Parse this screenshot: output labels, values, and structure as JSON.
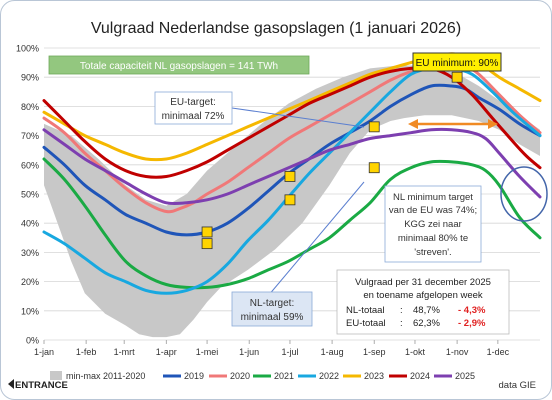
{
  "chart_data": {
    "type": "line",
    "title": "Vulgraad Nederlandse gasopslagen (1 januari 2026)",
    "ylim": [
      0,
      100
    ],
    "xlim": [
      0,
      365
    ],
    "yticks": [
      {
        "v": 0,
        "label": "0%"
      },
      {
        "v": 10,
        "label": "10%"
      },
      {
        "v": 20,
        "label": "20%"
      },
      {
        "v": 30,
        "label": "30%"
      },
      {
        "v": 40,
        "label": "40%"
      },
      {
        "v": 50,
        "label": "50%"
      },
      {
        "v": 60,
        "label": "60%"
      },
      {
        "v": 70,
        "label": "70%"
      },
      {
        "v": 80,
        "label": "80%"
      },
      {
        "v": 90,
        "label": "90%"
      },
      {
        "v": 100,
        "label": "100%"
      }
    ],
    "xticks": [
      {
        "v": 0,
        "label": "1-jan"
      },
      {
        "v": 31,
        "label": "1-feb"
      },
      {
        "v": 59,
        "label": "1-mrt"
      },
      {
        "v": 90,
        "label": "1-apr"
      },
      {
        "v": 120,
        "label": "1-mei"
      },
      {
        "v": 151,
        "label": "1-jun"
      },
      {
        "v": 181,
        "label": "1-jul"
      },
      {
        "v": 212,
        "label": "1-aug"
      },
      {
        "v": 243,
        "label": "1-sep"
      },
      {
        "v": 273,
        "label": "1-okt"
      },
      {
        "v": 304,
        "label": "1-nov"
      },
      {
        "v": 334,
        "label": "1-dec"
      }
    ],
    "band": {
      "name": "min-max 2011-2020",
      "color": "#c8c8c8",
      "upper": [
        [
          0,
          74
        ],
        [
          20,
          70
        ],
        [
          40,
          62
        ],
        [
          60,
          53
        ],
        [
          75,
          48
        ],
        [
          90,
          46
        ],
        [
          105,
          50
        ],
        [
          120,
          58
        ],
        [
          140,
          66
        ],
        [
          160,
          74
        ],
        [
          180,
          81
        ],
        [
          200,
          86
        ],
        [
          220,
          90
        ],
        [
          240,
          93
        ],
        [
          260,
          94
        ],
        [
          275,
          94
        ],
        [
          290,
          93
        ],
        [
          305,
          91
        ],
        [
          320,
          87
        ],
        [
          335,
          82
        ],
        [
          350,
          77
        ],
        [
          365,
          72
        ]
      ],
      "lower": [
        [
          0,
          53
        ],
        [
          10,
          40
        ],
        [
          20,
          27
        ],
        [
          30,
          16
        ],
        [
          45,
          9
        ],
        [
          60,
          5
        ],
        [
          70,
          2
        ],
        [
          80,
          1
        ],
        [
          90,
          1
        ],
        [
          100,
          2
        ],
        [
          110,
          7
        ],
        [
          120,
          13
        ],
        [
          130,
          18
        ],
        [
          150,
          24
        ],
        [
          170,
          31
        ],
        [
          190,
          40
        ],
        [
          210,
          53
        ],
        [
          225,
          64
        ],
        [
          240,
          72
        ],
        [
          255,
          75
        ],
        [
          265,
          76
        ],
        [
          280,
          77
        ],
        [
          300,
          77
        ],
        [
          320,
          75
        ],
        [
          335,
          72
        ],
        [
          350,
          67
        ],
        [
          365,
          63
        ]
      ]
    },
    "series": [
      {
        "name": "2019",
        "color": "#1f55b8",
        "points": [
          [
            0,
            66
          ],
          [
            15,
            60
          ],
          [
            30,
            53
          ],
          [
            45,
            48
          ],
          [
            60,
            43
          ],
          [
            75,
            40
          ],
          [
            90,
            37
          ],
          [
            105,
            36
          ],
          [
            120,
            37
          ],
          [
            135,
            40
          ],
          [
            150,
            45
          ],
          [
            165,
            51
          ],
          [
            180,
            57
          ],
          [
            195,
            62
          ],
          [
            210,
            67
          ],
          [
            225,
            71
          ],
          [
            240,
            75
          ],
          [
            255,
            80
          ],
          [
            270,
            84
          ],
          [
            285,
            87
          ],
          [
            300,
            87
          ],
          [
            310,
            86
          ],
          [
            320,
            83
          ],
          [
            335,
            79
          ],
          [
            350,
            74
          ],
          [
            365,
            70
          ]
        ]
      },
      {
        "name": "2020",
        "color": "#f07878",
        "points": [
          [
            0,
            76
          ],
          [
            15,
            71
          ],
          [
            30,
            64
          ],
          [
            45,
            58
          ],
          [
            60,
            52
          ],
          [
            75,
            47
          ],
          [
            90,
            44
          ],
          [
            100,
            45
          ],
          [
            110,
            47
          ],
          [
            120,
            50
          ],
          [
            135,
            54
          ],
          [
            150,
            59
          ],
          [
            165,
            64
          ],
          [
            180,
            69
          ],
          [
            195,
            73
          ],
          [
            210,
            77
          ],
          [
            225,
            81
          ],
          [
            240,
            85
          ],
          [
            255,
            89
          ],
          [
            270,
            92
          ],
          [
            285,
            94
          ],
          [
            300,
            95
          ],
          [
            310,
            94
          ],
          [
            320,
            91
          ],
          [
            335,
            84
          ],
          [
            350,
            77
          ],
          [
            365,
            71
          ]
        ]
      },
      {
        "name": "2021",
        "color": "#1aaa44",
        "points": [
          [
            0,
            62
          ],
          [
            15,
            55
          ],
          [
            30,
            46
          ],
          [
            45,
            36
          ],
          [
            60,
            27
          ],
          [
            75,
            22
          ],
          [
            90,
            19
          ],
          [
            105,
            18
          ],
          [
            120,
            18
          ],
          [
            135,
            19
          ],
          [
            150,
            21
          ],
          [
            165,
            24
          ],
          [
            180,
            27
          ],
          [
            195,
            31
          ],
          [
            210,
            35
          ],
          [
            225,
            41
          ],
          [
            240,
            47
          ],
          [
            255,
            55
          ],
          [
            270,
            59
          ],
          [
            285,
            61
          ],
          [
            300,
            61
          ],
          [
            315,
            60
          ],
          [
            325,
            58
          ],
          [
            335,
            53
          ],
          [
            350,
            42
          ],
          [
            365,
            35
          ]
        ]
      },
      {
        "name": "2022",
        "color": "#18a8e0",
        "points": [
          [
            0,
            37
          ],
          [
            15,
            33
          ],
          [
            30,
            28
          ],
          [
            45,
            23
          ],
          [
            60,
            20
          ],
          [
            75,
            17
          ],
          [
            90,
            16
          ],
          [
            105,
            17
          ],
          [
            120,
            20
          ],
          [
            135,
            26
          ],
          [
            150,
            34
          ],
          [
            165,
            41
          ],
          [
            180,
            49
          ],
          [
            195,
            57
          ],
          [
            210,
            64
          ],
          [
            225,
            71
          ],
          [
            240,
            78
          ],
          [
            255,
            85
          ],
          [
            270,
            91
          ],
          [
            285,
            93
          ],
          [
            300,
            93
          ],
          [
            315,
            91
          ],
          [
            330,
            85
          ],
          [
            345,
            78
          ],
          [
            365,
            70
          ]
        ]
      },
      {
        "name": "2023",
        "color": "#f5b800",
        "points": [
          [
            0,
            78
          ],
          [
            15,
            74
          ],
          [
            30,
            70
          ],
          [
            45,
            67
          ],
          [
            60,
            64
          ],
          [
            75,
            62
          ],
          [
            90,
            62
          ],
          [
            105,
            64
          ],
          [
            120,
            67
          ],
          [
            135,
            70
          ],
          [
            150,
            73
          ],
          [
            165,
            76
          ],
          [
            180,
            79
          ],
          [
            195,
            82
          ],
          [
            210,
            85
          ],
          [
            225,
            88
          ],
          [
            240,
            91
          ],
          [
            255,
            93
          ],
          [
            270,
            95
          ],
          [
            285,
            97
          ],
          [
            300,
            98
          ],
          [
            310,
            97
          ],
          [
            320,
            95
          ],
          [
            335,
            90
          ],
          [
            350,
            86
          ],
          [
            365,
            82
          ]
        ]
      },
      {
        "name": "2024",
        "color": "#c00000",
        "points": [
          [
            0,
            82
          ],
          [
            15,
            75
          ],
          [
            30,
            68
          ],
          [
            45,
            62
          ],
          [
            60,
            58
          ],
          [
            75,
            56
          ],
          [
            90,
            56
          ],
          [
            105,
            58
          ],
          [
            120,
            61
          ],
          [
            135,
            65
          ],
          [
            150,
            69
          ],
          [
            165,
            73
          ],
          [
            180,
            77
          ],
          [
            195,
            81
          ],
          [
            210,
            84
          ],
          [
            225,
            87
          ],
          [
            240,
            90
          ],
          [
            255,
            92
          ],
          [
            270,
            93
          ],
          [
            285,
            93
          ],
          [
            300,
            90
          ],
          [
            315,
            84
          ],
          [
            330,
            76
          ],
          [
            345,
            68
          ],
          [
            355,
            63
          ],
          [
            365,
            59
          ]
        ]
      },
      {
        "name": "2025",
        "color": "#7d3fb0",
        "points": [
          [
            0,
            72
          ],
          [
            15,
            67
          ],
          [
            30,
            62
          ],
          [
            45,
            58
          ],
          [
            60,
            54
          ],
          [
            75,
            50
          ],
          [
            90,
            47
          ],
          [
            105,
            47
          ],
          [
            120,
            48
          ],
          [
            135,
            50
          ],
          [
            150,
            53
          ],
          [
            165,
            56
          ],
          [
            180,
            59
          ],
          [
            195,
            62
          ],
          [
            210,
            65
          ],
          [
            225,
            67
          ],
          [
            240,
            69
          ],
          [
            255,
            70
          ],
          [
            270,
            71
          ],
          [
            285,
            72
          ],
          [
            300,
            72
          ],
          [
            315,
            71
          ],
          [
            325,
            69
          ],
          [
            335,
            64
          ],
          [
            350,
            56
          ],
          [
            365,
            49
          ]
        ]
      }
    ],
    "markers": [
      {
        "x": 120,
        "y": 37
      },
      {
        "x": 120,
        "y": 33
      },
      {
        "x": 181,
        "y": 56
      },
      {
        "x": 181,
        "y": 48
      },
      {
        "x": 243,
        "y": 73
      },
      {
        "x": 243,
        "y": 59
      },
      {
        "x": 304,
        "y": 90
      }
    ],
    "marker_color": "#ffd400",
    "annotations": {
      "capacity_box": "Totale capaciteit NL gasopslagen = 141 TWh",
      "eu_min": "EU minimum: 90%",
      "eu_target_line1": "EU-target:",
      "eu_target_line2": "minimaal 72%",
      "nl_target_line1": "NL-target:",
      "nl_target_line2": "minimaal 59%",
      "nl_note": [
        "NL minimum target",
        "van de EU was 74%;",
        "KGG zei naar",
        "minimaal 80% te",
        "'streven'."
      ],
      "summary_title1": "Vulgraad per 31 december 2025",
      "summary_title2": "en toename afgelopen week",
      "summary_rows": [
        {
          "label": "NL-totaal",
          "colon": ":",
          "value": "48,7%",
          "change": "- 4,3%"
        },
        {
          "label": "EU-totaal",
          "colon": ":",
          "value": "62,3%",
          "change": "- 2,9%"
        }
      ]
    },
    "legend_placement": "bottom",
    "footer_logo": "ENTRANCE",
    "footer_source": "data GIE"
  }
}
